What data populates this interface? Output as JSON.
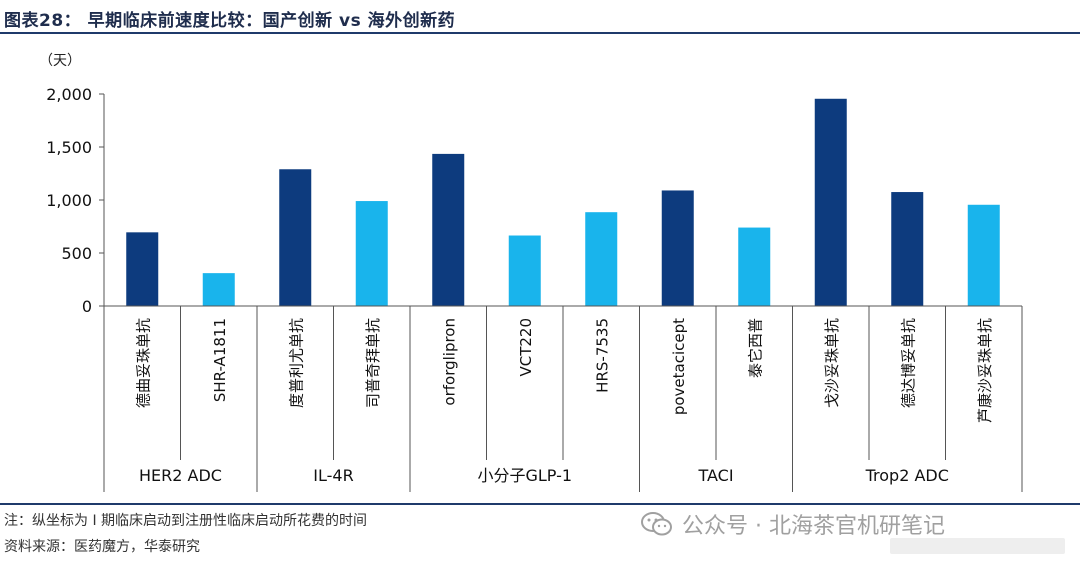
{
  "header": {
    "title": "图表28：   早期临床前速度比较：国产创新  vs  海外创新药"
  },
  "footer": {
    "note": "注：纵坐标为 I 期临床启动到注册性临床启动所花费的时间",
    "source": "资料来源：医药魔方，华泰研究",
    "watermark": "公众号 · 北海茶官机研笔记"
  },
  "colors": {
    "domestic": "#0d3b7e",
    "overseas": "#19b4ec",
    "title": "#1f2d4d",
    "rule": "#1f3a6b"
  },
  "chart_data": {
    "type": "bar",
    "title": "",
    "ylabel": "（天）",
    "xlabel": "",
    "ylim": [
      0,
      2000
    ],
    "yticks": [
      "0",
      "500",
      "1,000",
      "1,500",
      "2,000"
    ],
    "ytick_values": [
      0,
      500,
      1000,
      1500,
      2000
    ],
    "grid": false,
    "categories": [
      "德曲妥珠单抗",
      "SHR-A1811",
      "度普利尤单抗",
      "司普奇拜单抗",
      "orforglipron",
      "VCT220",
      "HRS-7535",
      "povetacicept",
      "泰它西普",
      "戈沙妥珠单抗",
      "德达博妥单抗",
      "芦康沙妥珠单抗"
    ],
    "values": [
      695,
      310,
      1290,
      990,
      1435,
      665,
      885,
      1090,
      740,
      1955,
      1075,
      955
    ],
    "origin": [
      "overseas",
      "domestic",
      "overseas",
      "domestic",
      "overseas",
      "domestic",
      "domestic",
      "overseas",
      "domestic",
      "overseas",
      "overseas",
      "domestic"
    ],
    "groups": [
      {
        "label": "HER2 ADC",
        "count": 2
      },
      {
        "label": "IL-4R",
        "count": 2
      },
      {
        "label": "小分子GLP-1",
        "count": 3
      },
      {
        "label": "TACI",
        "count": 2
      },
      {
        "label": "Trop2 ADC",
        "count": 3
      }
    ]
  }
}
